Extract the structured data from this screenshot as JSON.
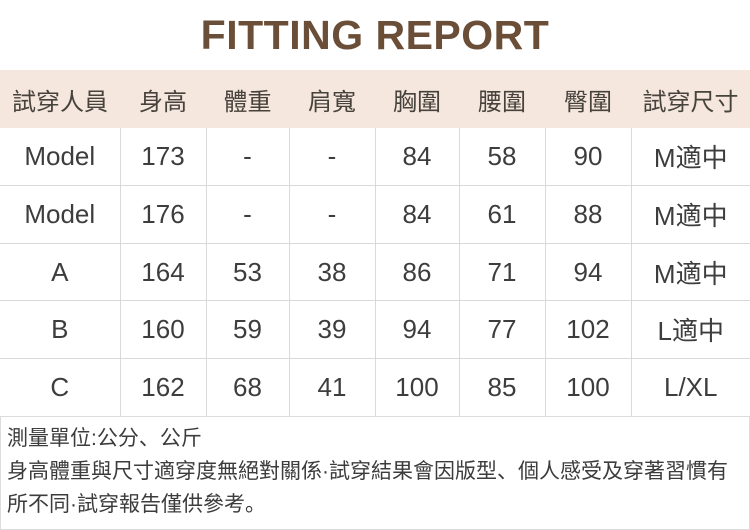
{
  "title": "FITTING REPORT",
  "table": {
    "headers": [
      "試穿人員",
      "身高",
      "體重",
      "肩寬",
      "胸圍",
      "腰圍",
      "臀圍",
      "試穿尺寸"
    ],
    "rows": [
      [
        "Model",
        "173",
        "-",
        "-",
        "84",
        "58",
        "90",
        "M適中"
      ],
      [
        "Model",
        "176",
        "-",
        "-",
        "84",
        "61",
        "88",
        "M適中"
      ],
      [
        "A",
        "164",
        "53",
        "38",
        "86",
        "71",
        "94",
        "M適中"
      ],
      [
        "B",
        "160",
        "59",
        "39",
        "94",
        "77",
        "102",
        "L適中"
      ],
      [
        "C",
        "162",
        "68",
        "41",
        "100",
        "85",
        "100",
        "L/XL"
      ]
    ]
  },
  "footer": {
    "unit_note": "測量單位:公分、公斤",
    "disclaimer": "身高體重與尺寸適穿度無絕對關係·試穿結果會因版型、個人感受及穿著習慣有所不同·試穿報告僅供參考。"
  },
  "colors": {
    "title_brown": "#6b4e37",
    "header_bg": "#f5e7dd",
    "border": "#d9d9d9",
    "text": "#3d3d3d"
  }
}
